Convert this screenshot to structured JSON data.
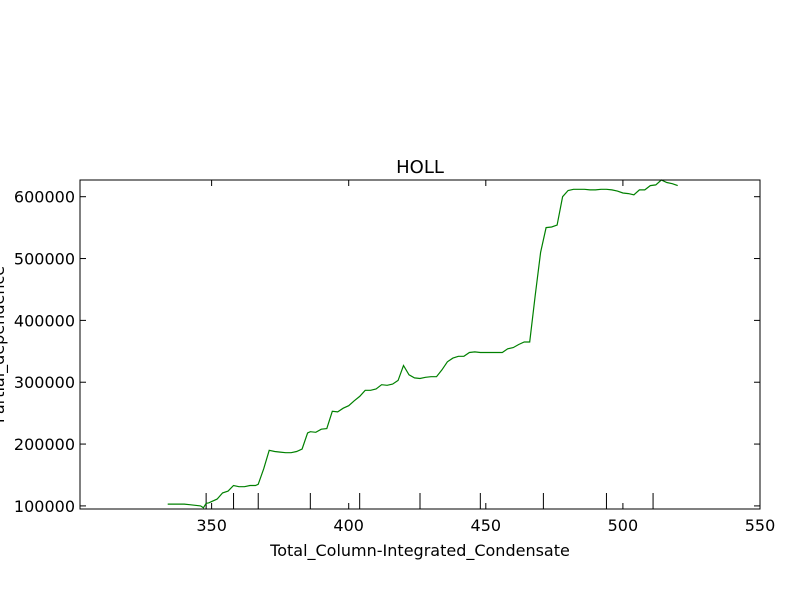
{
  "chart_data": {
    "type": "line",
    "title": "HOLL",
    "xlabel": "Total_Column-Integrated_Condensate",
    "ylabel": "Partial_dependence",
    "xlim": [
      302,
      550
    ],
    "ylim": [
      95000,
      627000
    ],
    "xticks": [
      350,
      400,
      450,
      500,
      550
    ],
    "yticks": [
      100000,
      200000,
      300000,
      400000,
      500000,
      600000
    ],
    "x_tick_labels": [
      "350",
      "400",
      "450",
      "500",
      "550"
    ],
    "y_tick_labels": [
      "100000",
      "200000",
      "300000",
      "400000",
      "500000",
      "600000"
    ],
    "rug": [
      348,
      358,
      367,
      386,
      404,
      426,
      448,
      471,
      494,
      511
    ],
    "grid": false,
    "series": [
      {
        "color": "#008000",
        "x": [
          334,
          336,
          338,
          340,
          342,
          344,
          346,
          347,
          348,
          349,
          350,
          352,
          354,
          356,
          358,
          360,
          362,
          364,
          366,
          367,
          369,
          371,
          373,
          375,
          377,
          379,
          381,
          383,
          385,
          386,
          388,
          390,
          392,
          394,
          396,
          398,
          400,
          402,
          404,
          406,
          408,
          410,
          412,
          414,
          416,
          418,
          420,
          422,
          424,
          426,
          428,
          430,
          432,
          434,
          436,
          438,
          440,
          442,
          444,
          446,
          448,
          450,
          452,
          454,
          456,
          458,
          460,
          462,
          464,
          466,
          468,
          470,
          472,
          474,
          476,
          478,
          480,
          482,
          484,
          486,
          488,
          490,
          492,
          494,
          496,
          498,
          500,
          502,
          504,
          506,
          508,
          510,
          512,
          514,
          516,
          518,
          520
        ],
        "y": [
          103000,
          103000,
          103000,
          103000,
          102000,
          101000,
          100000,
          97000,
          104000,
          105000,
          107000,
          111000,
          121000,
          124000,
          133000,
          131000,
          131000,
          133000,
          133000,
          135000,
          160000,
          190000,
          188000,
          187000,
          186000,
          186000,
          188000,
          192000,
          218000,
          220000,
          219000,
          224000,
          225000,
          253000,
          252000,
          258000,
          262000,
          270000,
          277000,
          287000,
          287000,
          289000,
          296000,
          295000,
          297000,
          303000,
          327000,
          312000,
          307000,
          306000,
          308000,
          309000,
          309000,
          320000,
          333000,
          339000,
          342000,
          342000,
          348000,
          349000,
          348000,
          348000,
          348000,
          348000,
          348000,
          354000,
          356000,
          361000,
          365000,
          365000,
          440000,
          510000,
          550000,
          551000,
          554000,
          600000,
          610000,
          612000,
          612000,
          612000,
          611000,
          611000,
          612000,
          612000,
          611000,
          609000,
          606000,
          605000,
          603000,
          611000,
          611000,
          618000,
          619000,
          627000,
          623000,
          621000,
          618000
        ]
      }
    ]
  }
}
